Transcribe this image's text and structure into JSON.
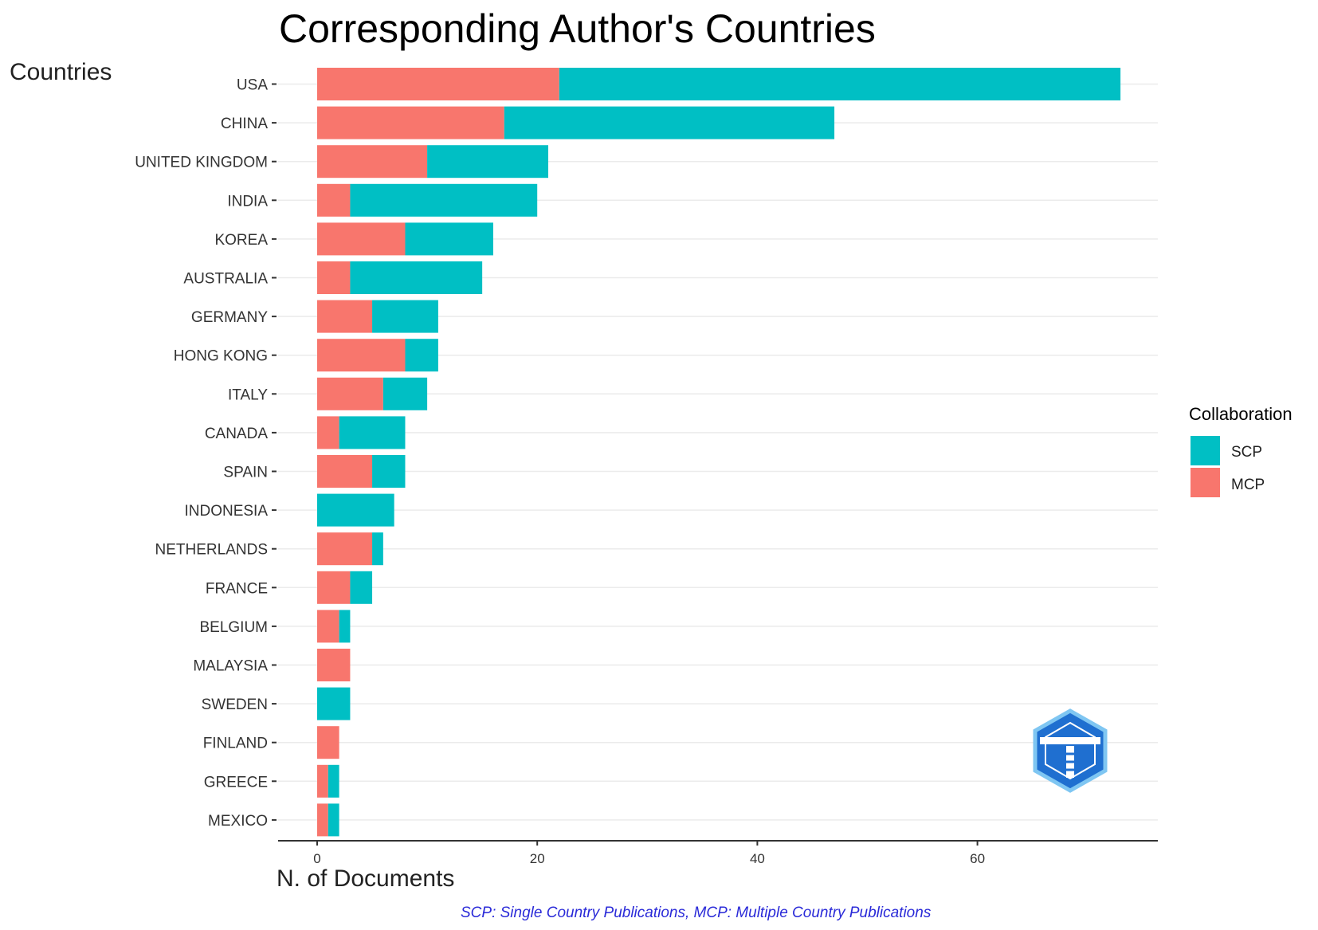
{
  "chart_data": {
    "type": "bar",
    "orientation": "horizontal",
    "stacked": true,
    "title": "Corresponding Author's Countries",
    "ylabel": "Countries",
    "xlabel": "N. of Documents",
    "xlim": [
      0,
      77
    ],
    "xticks": [
      0,
      20,
      40,
      60
    ],
    "grid": "horizontal",
    "categories": [
      "USA",
      "CHINA",
      "UNITED KINGDOM",
      "INDIA",
      "KOREA",
      "AUSTRALIA",
      "GERMANY",
      "HONG KONG",
      "ITALY",
      "CANADA",
      "SPAIN",
      "INDONESIA",
      "NETHERLANDS",
      "FRANCE",
      "BELGIUM",
      "MALAYSIA",
      "SWEDEN",
      "FINLAND",
      "GREECE",
      "MEXICO"
    ],
    "series": [
      {
        "name": "MCP",
        "color": "#F8766D",
        "values": [
          22,
          17,
          10,
          3,
          8,
          3,
          5,
          8,
          6,
          2,
          5,
          0,
          5,
          3,
          2,
          3,
          0,
          2,
          1,
          1
        ]
      },
      {
        "name": "SCP",
        "color": "#00BFC4",
        "values": [
          51,
          30,
          11,
          17,
          8,
          12,
          6,
          3,
          4,
          6,
          3,
          7,
          1,
          2,
          1,
          0,
          3,
          0,
          1,
          1
        ]
      }
    ],
    "legend": {
      "title": "Collaboration",
      "placement": "right",
      "order": [
        "SCP",
        "MCP"
      ]
    },
    "caption": "SCP: Single Country Publications, MCP: Multiple Country Publications"
  },
  "logo": {
    "icon": "bibliometrix-logo-icon",
    "color": "#1f6fd0"
  }
}
